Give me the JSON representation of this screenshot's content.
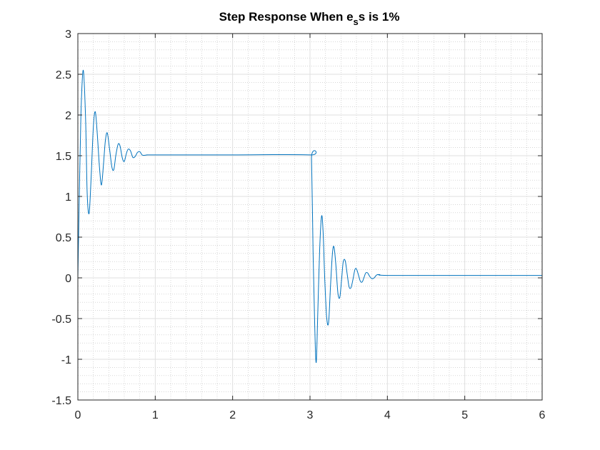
{
  "chart_data": {
    "type": "line",
    "title": "Step Response When e",
    "title_subscript": "s",
    "title_suffix": "s is 1%",
    "xlabel": "",
    "ylabel": "",
    "xlim": [
      0,
      6
    ],
    "ylim": [
      -1.5,
      3
    ],
    "x_ticks": [
      0,
      1,
      2,
      3,
      4,
      5,
      6
    ],
    "y_ticks": [
      -1.5,
      -1,
      -0.5,
      0,
      0.5,
      1,
      1.5,
      2,
      2.5,
      3
    ],
    "x_tick_labels": [
      "0",
      "1",
      "2",
      "3",
      "4",
      "5",
      "6"
    ],
    "y_tick_labels": [
      "-1.5",
      "-1",
      "-0.5",
      "0",
      "0.5",
      "1",
      "1.5",
      "2",
      "2.5",
      "3"
    ],
    "x_minor_step": 0.2,
    "y_minor_step": 0.1,
    "grid": true,
    "minor_grid": true,
    "legend": "none",
    "colors": {
      "line": "#0072BD",
      "axis": "#262626",
      "major_grid": "#dfdfdf",
      "minor_grid": "#bfbfbf"
    },
    "series": [
      {
        "points": [
          [
            0,
            0
          ],
          [
            0.02,
            1.08
          ],
          [
            0.04,
            2.02
          ],
          [
            0.07,
            2.55
          ],
          [
            0.1,
            1.95
          ],
          [
            0.12,
            1.05
          ],
          [
            0.145,
            0.79
          ],
          [
            0.17,
            1.2
          ],
          [
            0.2,
            1.85
          ],
          [
            0.225,
            2.04
          ],
          [
            0.25,
            1.78
          ],
          [
            0.28,
            1.35
          ],
          [
            0.305,
            1.14
          ],
          [
            0.33,
            1.38
          ],
          [
            0.355,
            1.68
          ],
          [
            0.38,
            1.78
          ],
          [
            0.41,
            1.58
          ],
          [
            0.44,
            1.36
          ],
          [
            0.465,
            1.33
          ],
          [
            0.49,
            1.5
          ],
          [
            0.52,
            1.64
          ],
          [
            0.545,
            1.62
          ],
          [
            0.575,
            1.47
          ],
          [
            0.6,
            1.43
          ],
          [
            0.625,
            1.52
          ],
          [
            0.65,
            1.58
          ],
          [
            0.68,
            1.56
          ],
          [
            0.71,
            1.48
          ],
          [
            0.74,
            1.49
          ],
          [
            0.77,
            1.54
          ],
          [
            0.8,
            1.55
          ],
          [
            0.83,
            1.51
          ],
          [
            0.86,
            1.505
          ],
          [
            0.9,
            1.51
          ],
          [
            1.0,
            1.51
          ],
          [
            2.0,
            1.51
          ],
          [
            3.0,
            1.51
          ],
          [
            3.02,
            1.46
          ],
          [
            3.04,
            0.3
          ],
          [
            3.06,
            -0.55
          ],
          [
            3.08,
            -1.04
          ],
          [
            3.1,
            -0.45
          ],
          [
            3.125,
            0.35
          ],
          [
            3.15,
            0.76
          ],
          [
            3.17,
            0.55
          ],
          [
            3.19,
            0.0
          ],
          [
            3.215,
            -0.48
          ],
          [
            3.24,
            -0.55
          ],
          [
            3.265,
            -0.1
          ],
          [
            3.29,
            0.3
          ],
          [
            3.31,
            0.38
          ],
          [
            3.335,
            0.15
          ],
          [
            3.36,
            -0.18
          ],
          [
            3.385,
            -0.24
          ],
          [
            3.41,
            0.0
          ],
          [
            3.43,
            0.2
          ],
          [
            3.455,
            0.21
          ],
          [
            3.48,
            0.05
          ],
          [
            3.505,
            -0.11
          ],
          [
            3.53,
            -0.12
          ],
          [
            3.555,
            -0.02
          ],
          [
            3.58,
            0.1
          ],
          [
            3.6,
            0.11
          ],
          [
            3.625,
            0.04
          ],
          [
            3.65,
            -0.04
          ],
          [
            3.675,
            -0.05
          ],
          [
            3.7,
            0.01
          ],
          [
            3.72,
            0.06
          ],
          [
            3.745,
            0.06
          ],
          [
            3.77,
            0.02
          ],
          [
            3.8,
            -0.01
          ],
          [
            3.83,
            0.0
          ],
          [
            3.86,
            0.035
          ],
          [
            3.9,
            0.04
          ],
          [
            4.0,
            0.03
          ],
          [
            5.0,
            0.03
          ],
          [
            6.0,
            0.03
          ]
        ]
      }
    ]
  }
}
